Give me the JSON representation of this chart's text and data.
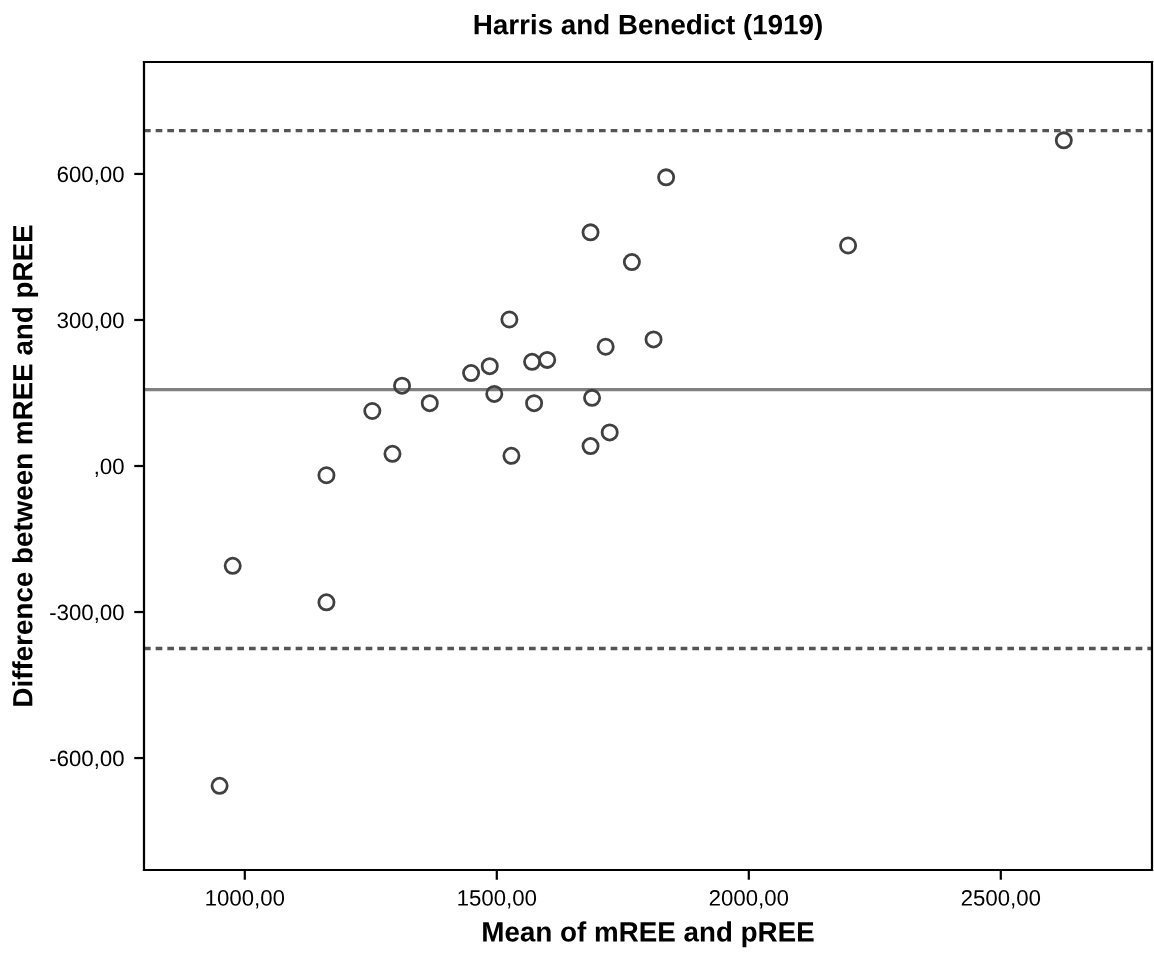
{
  "chart_data": {
    "type": "scatter",
    "title": "Harris and Benedict (1919)",
    "xlabel": "Mean of mREE and pREE",
    "ylabel": "Difference between mREE and pREE",
    "x": [
      950,
      976,
      1162,
      1162,
      1253,
      1293,
      1312,
      1367,
      1449,
      1486,
      1495,
      1525,
      1529,
      1570,
      1574,
      1600,
      1686,
      1689,
      1686,
      1716,
      1724,
      1768,
      1836,
      2197,
      1811,
      2625
    ],
    "values": [
      -657,
      -205,
      -19,
      -280,
      113,
      25,
      165,
      129,
      191,
      205,
      148,
      301,
      21,
      214,
      129,
      218,
      480,
      140,
      41,
      245,
      69,
      419,
      593,
      453,
      260,
      669
    ],
    "color": "#404040",
    "marker": "circle",
    "grid": false,
    "legend": false,
    "xlim": [
      800,
      2800
    ],
    "ylim": [
      -830,
      830
    ],
    "xticks": [
      {
        "value": 1000,
        "label": "1000,00"
      },
      {
        "value": 1500,
        "label": "1500,00"
      },
      {
        "value": 2000,
        "label": "2000,00"
      },
      {
        "value": 2500,
        "label": "2500,00"
      }
    ],
    "yticks": [
      {
        "value": -600,
        "label": "-600,00"
      },
      {
        "value": -300,
        "label": "-300,00"
      },
      {
        "value": 0,
        "label": ",00"
      },
      {
        "value": 300,
        "label": "300,00"
      },
      {
        "value": 600,
        "label": "600,00"
      }
    ],
    "ref_lines": [
      {
        "axis": "y",
        "value": 689,
        "color": "#555555",
        "line_style": "dotted"
      },
      {
        "axis": "y",
        "value": 157,
        "color": "#808080",
        "line_style": "solid"
      },
      {
        "axis": "y",
        "value": -375,
        "color": "#555555",
        "line_style": "dotted"
      }
    ]
  }
}
